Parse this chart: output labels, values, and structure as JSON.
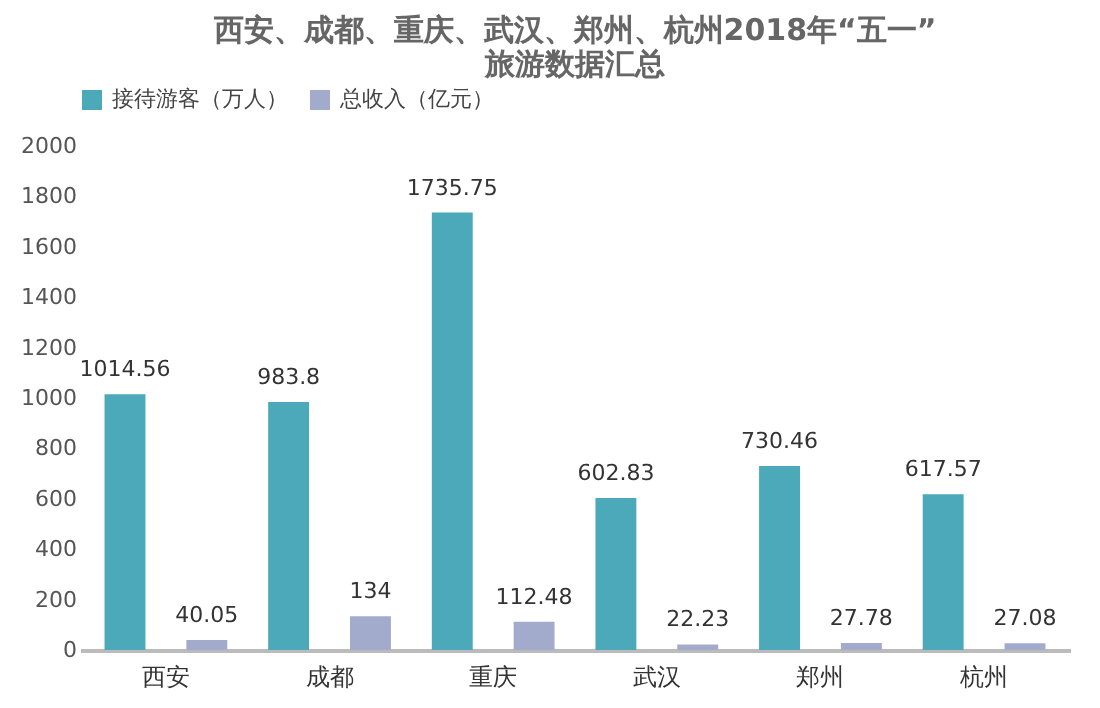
{
  "chart_data": {
    "type": "bar",
    "title": "西安、成都、重庆、武汉、郑州、杭州2018年“五一”\n旅游数据汇总",
    "categories": [
      "西安",
      "成都",
      "重庆",
      "武汉",
      "郑州",
      "杭州"
    ],
    "series": [
      {
        "name": "接待游客（万人）",
        "color": "#4ba9b9",
        "values": [
          1014.56,
          983.8,
          1735.75,
          602.83,
          730.46,
          617.57
        ]
      },
      {
        "name": "总收入（亿元）",
        "color": "#a3abcd",
        "values": [
          40.05,
          134,
          112.48,
          22.23,
          27.78,
          27.08
        ]
      }
    ],
    "ylim": [
      0,
      2000
    ],
    "yticks": [
      0,
      200,
      400,
      600,
      800,
      1000,
      1200,
      1400,
      1600,
      1800,
      2000
    ],
    "grid": false,
    "legend": "top",
    "data_labels": true
  }
}
